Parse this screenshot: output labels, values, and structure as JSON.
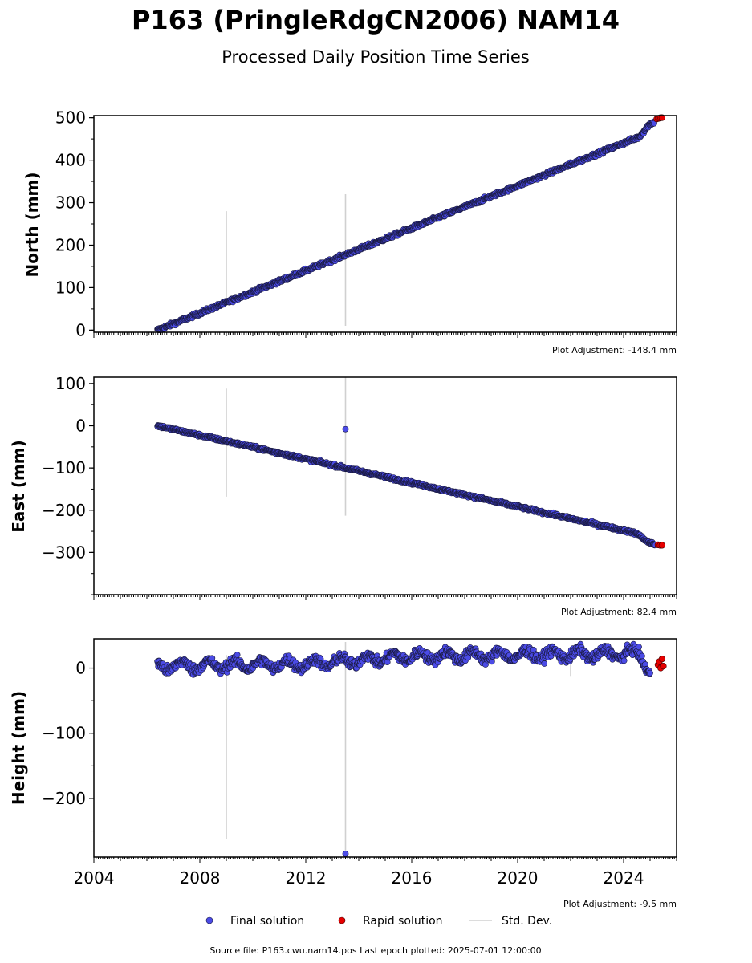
{
  "colors": {
    "final_fill": "#4B4BE6",
    "final_edge": "#1a1a40",
    "rapid_fill": "#E60000",
    "rapid_edge": "#400000",
    "stddev": "#d0d0d0",
    "axis": "#000000"
  },
  "figure": {
    "title": "P163 (PringleRdgCN2006) NAM14",
    "subtitle": "Processed Daily Position Time Series",
    "source_line": "Source file: P163.cwu.nam14.pos  Last epoch plotted: 2025-07-01 12:00:00"
  },
  "legend": {
    "final_label": "Final solution",
    "rapid_label": "Rapid solution",
    "std_label": "Std. Dev."
  },
  "chart_data": [
    {
      "type": "scatter",
      "name": "north",
      "ylabel": "North (mm)",
      "adjustment": "Plot Adjustment: -148.4 mm",
      "xlim": [
        2004.0,
        2026.0
      ],
      "ylim": [
        -5,
        505
      ],
      "yticks": [
        0,
        100,
        200,
        300,
        400,
        500
      ],
      "ytick_labels": [
        "0",
        "100",
        "200",
        "300",
        "400",
        "500"
      ],
      "show_xtick_labels": false,
      "final_trend": {
        "x": [
          2006.4,
          2024.6,
          2024.95,
          2025.15
        ],
        "y": [
          0,
          455,
          483,
          490
        ]
      },
      "rapid_points": {
        "x": [
          2025.25,
          2025.3,
          2025.35,
          2025.4,
          2025.45
        ],
        "y": [
          497,
          498,
          499,
          500,
          500
        ]
      },
      "outliers": {
        "x": [],
        "y": []
      },
      "noise_mm": 3,
      "std_dev_bars": [
        {
          "x": 2009.0,
          "y_low": 60,
          "y_high": 280
        },
        {
          "x": 2013.5,
          "y_low": 10,
          "y_high": 320
        }
      ]
    },
    {
      "type": "scatter",
      "name": "east",
      "ylabel": "East (mm)",
      "adjustment": "Plot Adjustment: 82.4 mm",
      "xlim": [
        2004.0,
        2026.0
      ],
      "ylim": [
        -400,
        115
      ],
      "yticks": [
        100,
        0,
        -100,
        -200,
        -300
      ],
      "ytick_labels": [
        "100",
        "0",
        "−100",
        "−200",
        "−300"
      ],
      "show_xtick_labels": false,
      "final_trend": {
        "x": [
          2006.4,
          2024.5,
          2024.9,
          2025.2
        ],
        "y": [
          0,
          -255,
          -275,
          -282
        ]
      },
      "rapid_points": {
        "x": [
          2025.3,
          2025.38,
          2025.45
        ],
        "y": [
          -282,
          -283,
          -283
        ]
      },
      "outliers": {
        "x": [
          2013.5
        ],
        "y": [
          -8
        ]
      },
      "noise_mm": 2.5,
      "std_dev_bars": [
        {
          "x": 2009.0,
          "y_low": -168,
          "y_high": 88
        },
        {
          "x": 2013.5,
          "y_low": -213,
          "y_high": 115
        }
      ]
    },
    {
      "type": "scatter",
      "name": "height",
      "ylabel": "Height (mm)",
      "adjustment": "Plot Adjustment: -9.5 mm",
      "xlim": [
        2004.0,
        2026.0
      ],
      "ylim": [
        -290,
        45
      ],
      "yticks": [
        0,
        -100,
        -200
      ],
      "ytick_labels": [
        "0",
        "−100",
        "−200"
      ],
      "xticks": [
        2004,
        2008,
        2012,
        2016,
        2020,
        2024
      ],
      "xtick_labels": [
        "2004",
        "2008",
        "2012",
        "2016",
        "2020",
        "2024"
      ],
      "show_xtick_labels": true,
      "final_trend": {
        "x": [
          2006.4,
          2012.0,
          2016.0,
          2020.0,
          2024.6,
          2025.0
        ],
        "y": [
          3,
          6,
          18,
          20,
          22,
          -5
        ]
      },
      "rapid_points": {
        "x": [
          2025.3,
          2025.35,
          2025.4,
          2025.45,
          2025.5
        ],
        "y": [
          5,
          10,
          0,
          14,
          3
        ]
      },
      "outliers": {
        "x": [
          2013.5
        ],
        "y": [
          -285
        ]
      },
      "noise_mm": 9,
      "std_dev_bars": [
        {
          "x": 2009.0,
          "y_low": -262,
          "y_high": 20
        },
        {
          "x": 2013.5,
          "y_low": -280,
          "y_high": 40
        },
        {
          "x": 2022.0,
          "y_low": -12,
          "y_high": 20
        }
      ]
    }
  ]
}
